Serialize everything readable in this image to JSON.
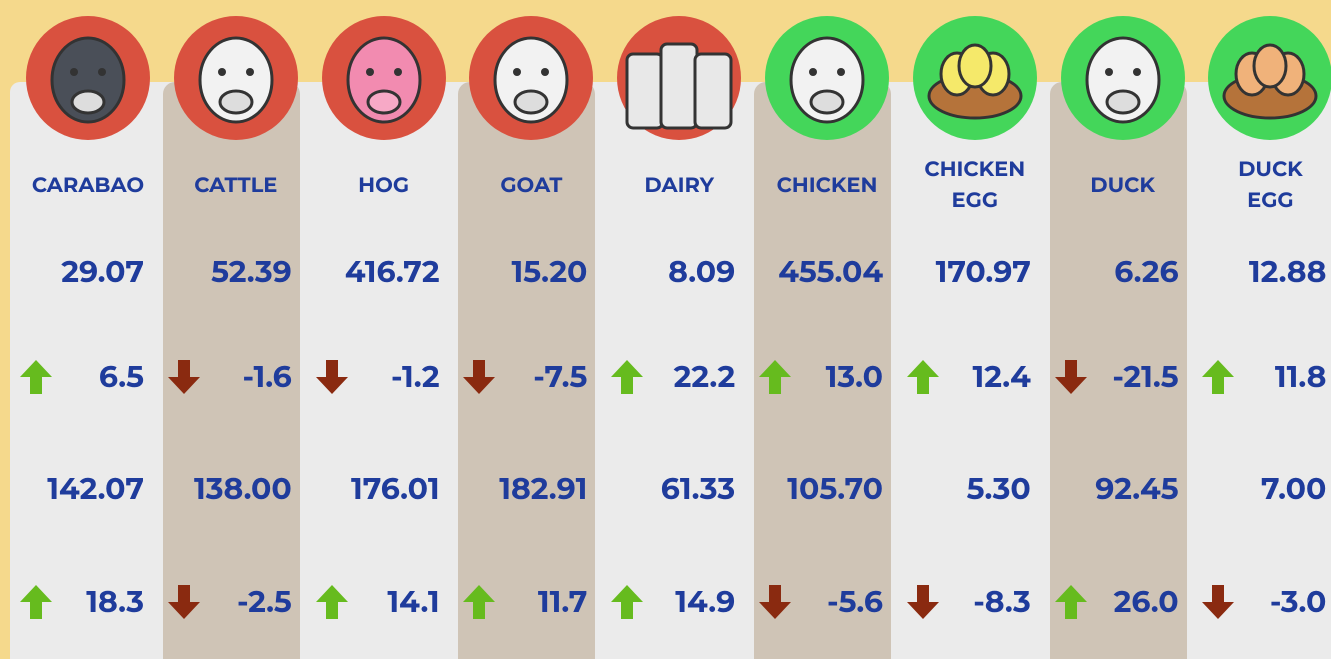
{
  "columns": [
    {
      "label": "CARABAO",
      "rows": [
        "29.07",
        "6.5",
        "142.07",
        "18.3"
      ]
    },
    {
      "label": "CATTLE",
      "rows": [
        "52.39",
        "-1.6",
        "138.00",
        "-2.5"
      ]
    },
    {
      "label": "HOG",
      "rows": [
        "416.72",
        "-1.2",
        "176.01",
        "14.1"
      ]
    },
    {
      "label": "GOAT",
      "rows": [
        "15.20",
        "-7.5",
        "182.91",
        "11.7"
      ]
    },
    {
      "label": "DAIRY",
      "rows": [
        "8.09",
        "22.2",
        "61.33",
        "14.9"
      ]
    },
    {
      "label": "CHICKEN",
      "rows": [
        "455.04",
        "13.0",
        "105.70",
        "-5.6"
      ]
    },
    {
      "label": "CHICKEN EGG",
      "rows": [
        "170.97",
        "12.4",
        "5.30",
        "-8.3"
      ]
    },
    {
      "label": "DUCK",
      "rows": [
        "6.26",
        "-21.5",
        "92.45",
        "26.0"
      ]
    },
    {
      "label": "DUCK EGG",
      "rows": [
        "12.88",
        "11.8",
        "7.00",
        "-3.0"
      ]
    }
  ]
}
